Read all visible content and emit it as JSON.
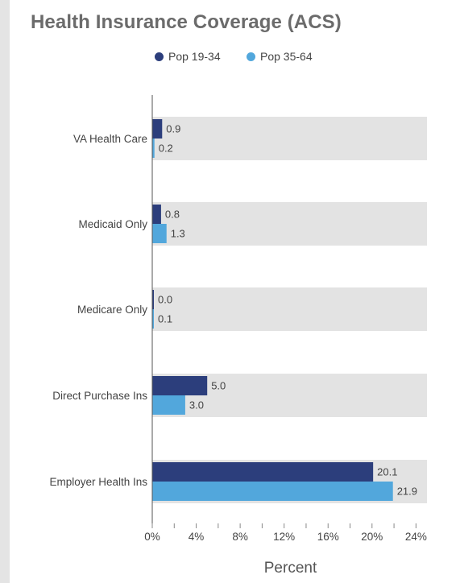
{
  "chart_data": {
    "type": "bar",
    "orientation": "horizontal",
    "title": "Health Insurance Coverage (ACS)",
    "xlabel": "Percent",
    "ylabel": "",
    "categories": [
      "VA Health Care",
      "Medicaid Only",
      "Medicare Only",
      "Direct Purchase Ins",
      "Employer Health Ins"
    ],
    "series": [
      {
        "name": "Pop 19-34",
        "color": "#2c3e7c",
        "values": [
          0.9,
          0.8,
          0.0,
          5.0,
          20.1
        ],
        "labels": [
          "0.9",
          "0.8",
          "0.0",
          "5.0",
          "20.1"
        ]
      },
      {
        "name": "Pop 35-64",
        "color": "#52a7dc",
        "values": [
          0.2,
          1.3,
          0.1,
          3.0,
          21.9
        ],
        "labels": [
          "0.2",
          "1.3",
          "0.1",
          "3.0",
          "21.9"
        ]
      }
    ],
    "xlim": [
      0,
      25
    ],
    "xticks": [
      0,
      4,
      8,
      12,
      16,
      20,
      24
    ],
    "xtick_labels": [
      "0%",
      "4%",
      "8%",
      "12%",
      "16%",
      "20%",
      "24%"
    ],
    "background_band_color": "#e3e3e3",
    "grid": false,
    "legend_position": "top-center"
  }
}
